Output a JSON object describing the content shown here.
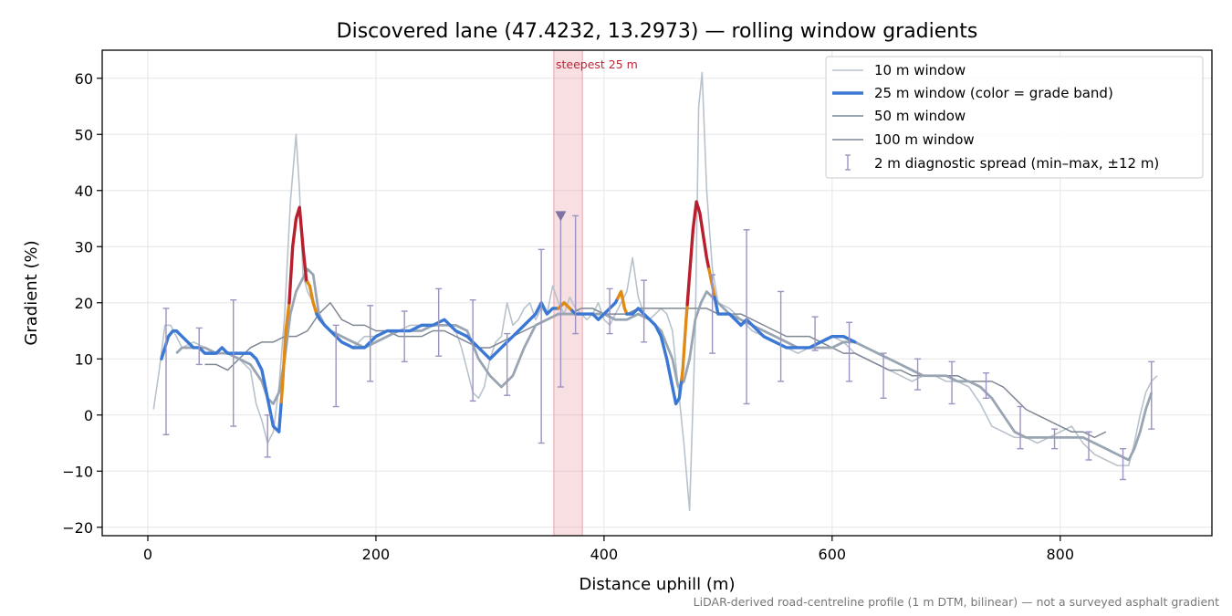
{
  "chart_data": {
    "type": "line",
    "title": "Discovered lane (47.4232, 13.2973) — rolling window gradients",
    "xlabel": "Distance uphill (m)",
    "ylabel": "Gradient (%)",
    "xlim": [
      -40,
      933
    ],
    "ylim": [
      -21.5,
      65
    ],
    "xticks": [
      0,
      200,
      400,
      600,
      800
    ],
    "yticks": [
      -20,
      -10,
      0,
      10,
      20,
      30,
      40,
      50,
      60
    ],
    "xtick_labels": [
      "0",
      "200",
      "400",
      "600",
      "800"
    ],
    "ytick_labels": [
      "−20",
      "−10",
      "0",
      "10",
      "20",
      "30",
      "40",
      "50",
      "60"
    ],
    "grid": true,
    "legend_position": "top-right",
    "footnote": "LiDAR-derived road-centreline profile (1 m DTM, bilinear) — not a surveyed asphalt gradient",
    "steepest_band": {
      "label": "steepest 25 m",
      "x0": 356,
      "x1": 381,
      "color": "#e8a3ac"
    },
    "steepest_marker": {
      "x": 362,
      "y": 35.5,
      "color": "#7f73a6"
    },
    "grade_colors": {
      "normal": "#3a78d4",
      "steep": "#e08a16",
      "very_steep": "#b81f2e"
    },
    "series": [
      {
        "name": "10 m window",
        "color": "#b8c2cc",
        "x": [
          5,
          10,
          15,
          20,
          25,
          30,
          40,
          50,
          60,
          70,
          80,
          90,
          95,
          100,
          105,
          110,
          115,
          120,
          125,
          130,
          133,
          136,
          140,
          145,
          150,
          160,
          170,
          180,
          190,
          200,
          210,
          220,
          230,
          240,
          250,
          260,
          270,
          275,
          280,
          285,
          290,
          295,
          300,
          305,
          310,
          315,
          320,
          325,
          330,
          335,
          340,
          345,
          350,
          355,
          360,
          365,
          370,
          375,
          380,
          385,
          390,
          395,
          400,
          405,
          410,
          415,
          420,
          425,
          430,
          435,
          440,
          445,
          450,
          455,
          460,
          465,
          470,
          475,
          480,
          483,
          486,
          490,
          495,
          500,
          510,
          520,
          530,
          540,
          550,
          560,
          570,
          580,
          590,
          600,
          610,
          620,
          630,
          640,
          650,
          660,
          670,
          680,
          690,
          700,
          710,
          720,
          730,
          740,
          750,
          760,
          770,
          780,
          790,
          800,
          810,
          820,
          830,
          840,
          850,
          860,
          865,
          870,
          875,
          880,
          885
        ],
        "y": [
          1,
          8,
          16,
          16,
          14,
          12,
          13,
          12,
          11,
          11,
          10,
          8,
          2,
          -1,
          -5,
          -3,
          5,
          18,
          38,
          50,
          40,
          25,
          22,
          20,
          17,
          15,
          13,
          12,
          14,
          14,
          15,
          15,
          16,
          16,
          16,
          17,
          15,
          12,
          8,
          4,
          3,
          5,
          10,
          13,
          14,
          20,
          16,
          17,
          19,
          20,
          17,
          19,
          18,
          23,
          20,
          18,
          21,
          19,
          18,
          17,
          18,
          20,
          17,
          16,
          18,
          20,
          22,
          28,
          21,
          18,
          17,
          18,
          19,
          18,
          15,
          5,
          -5,
          -17,
          15,
          55,
          61,
          40,
          26,
          20,
          19,
          17,
          15,
          14,
          13,
          12,
          11,
          12,
          13,
          14,
          13,
          11,
          10,
          9,
          8,
          7,
          6,
          7,
          7,
          6,
          6,
          5,
          2,
          -2,
          -3,
          -4,
          -4,
          -5,
          -4,
          -3,
          -2,
          -5,
          -7,
          -8,
          -9,
          -9,
          -5,
          0,
          4,
          6,
          7
        ]
      },
      {
        "name": "25 m window (color = grade band)",
        "color": "#3a78d4",
        "x": [
          12,
          15,
          18,
          22,
          25,
          30,
          35,
          40,
          45,
          50,
          55,
          60,
          65,
          70,
          75,
          80,
          85,
          90,
          95,
          100,
          105,
          110,
          115,
          118,
          121,
          124,
          127,
          130,
          133,
          136,
          139,
          142,
          145,
          148,
          151,
          155,
          160,
          165,
          170,
          180,
          190,
          200,
          210,
          220,
          230,
          240,
          250,
          260,
          270,
          280,
          290,
          300,
          310,
          320,
          330,
          340,
          345,
          350,
          355,
          360,
          365,
          370,
          375,
          380,
          385,
          390,
          395,
          400,
          405,
          410,
          415,
          418,
          420,
          425,
          430,
          435,
          440,
          445,
          450,
          455,
          460,
          463,
          466,
          469,
          472,
          475,
          478,
          481,
          484,
          487,
          490,
          493,
          496,
          500,
          505,
          510,
          515,
          520,
          525,
          530,
          540,
          550,
          560,
          570,
          580,
          590,
          600,
          610,
          620
        ],
        "y": [
          10,
          12,
          14,
          15,
          15,
          14,
          13,
          12,
          12,
          11,
          11,
          11,
          12,
          11,
          11,
          11,
          11,
          11,
          10,
          8,
          3,
          -2,
          -3,
          5,
          15,
          20,
          30,
          35,
          37,
          30,
          24,
          23,
          20,
          18,
          17,
          16,
          15,
          14,
          13,
          12,
          12,
          14,
          15,
          15,
          15,
          16,
          16,
          17,
          15,
          14,
          12,
          10,
          12,
          14,
          16,
          18,
          20,
          18,
          19,
          19,
          20,
          19,
          18,
          18,
          18,
          18,
          17,
          18,
          19,
          20,
          22,
          19,
          18,
          18,
          19,
          18,
          17,
          16,
          14,
          10,
          5,
          2,
          3,
          8,
          17,
          25,
          33,
          38,
          36,
          32,
          28,
          25,
          22,
          18,
          18,
          18,
          17,
          16,
          17,
          16,
          14,
          13,
          12,
          12,
          12,
          13,
          14,
          14,
          13
        ],
        "bands": [
          {
            "from": 12,
            "to": 117,
            "grade": "normal"
          },
          {
            "from": 117,
            "to": 124,
            "grade": "steep"
          },
          {
            "from": 124,
            "to": 140,
            "grade": "very_steep"
          },
          {
            "from": 140,
            "to": 148,
            "grade": "steep"
          },
          {
            "from": 148,
            "to": 360,
            "grade": "normal"
          },
          {
            "from": 360,
            "to": 372,
            "grade": "steep"
          },
          {
            "from": 372,
            "to": 412,
            "grade": "normal"
          },
          {
            "from": 412,
            "to": 420,
            "grade": "steep"
          },
          {
            "from": 420,
            "to": 468,
            "grade": "normal"
          },
          {
            "from": 468,
            "to": 473,
            "grade": "steep"
          },
          {
            "from": 473,
            "to": 492,
            "grade": "very_steep"
          },
          {
            "from": 492,
            "to": 497,
            "grade": "steep"
          },
          {
            "from": 497,
            "to": 620,
            "grade": "normal"
          }
        ]
      },
      {
        "name": "50 m window",
        "color": "#9aa5b3",
        "x": [
          25,
          30,
          40,
          50,
          60,
          70,
          80,
          90,
          100,
          105,
          110,
          115,
          120,
          125,
          130,
          135,
          140,
          145,
          150,
          155,
          160,
          170,
          180,
          190,
          200,
          210,
          220,
          230,
          240,
          250,
          260,
          270,
          280,
          290,
          300,
          310,
          320,
          330,
          340,
          350,
          360,
          370,
          380,
          390,
          400,
          410,
          420,
          430,
          440,
          450,
          460,
          465,
          470,
          475,
          480,
          485,
          490,
          500,
          510,
          520,
          530,
          540,
          550,
          560,
          570,
          580,
          590,
          600,
          610,
          620,
          630,
          640,
          650,
          660,
          670,
          680,
          690,
          700,
          710,
          720,
          730,
          740,
          750,
          760,
          770,
          780,
          790,
          800,
          810,
          820,
          830,
          840,
          850,
          860,
          865,
          870,
          875,
          880
        ],
        "y": [
          11,
          12,
          12,
          12,
          11,
          11,
          10,
          9,
          6,
          3,
          2,
          4,
          10,
          18,
          22,
          24,
          26,
          25,
          18,
          16,
          15,
          14,
          13,
          12,
          13,
          14,
          15,
          15,
          15,
          16,
          16,
          16,
          15,
          10,
          7,
          5,
          7,
          12,
          16,
          17,
          18,
          18,
          18,
          18,
          18,
          17,
          17,
          18,
          17,
          15,
          10,
          5,
          6,
          10,
          17,
          20,
          22,
          20,
          18,
          17,
          16,
          15,
          14,
          13,
          12,
          12,
          12,
          12,
          13,
          13,
          12,
          11,
          10,
          9,
          8,
          7,
          7,
          7,
          6,
          6,
          5,
          3,
          0,
          -3,
          -4,
          -4,
          -4,
          -4,
          -4,
          -4,
          -5,
          -6,
          -7,
          -8,
          -6,
          -3,
          1,
          4
        ]
      },
      {
        "name": "100 m window",
        "color": "#7e8794",
        "x": [
          50,
          60,
          70,
          80,
          90,
          100,
          110,
          120,
          130,
          140,
          150,
          160,
          170,
          180,
          190,
          200,
          210,
          220,
          230,
          240,
          250,
          260,
          270,
          280,
          290,
          300,
          310,
          320,
          330,
          340,
          350,
          360,
          370,
          380,
          390,
          400,
          410,
          420,
          430,
          440,
          450,
          460,
          470,
          480,
          490,
          500,
          510,
          520,
          530,
          540,
          550,
          560,
          570,
          580,
          590,
          600,
          610,
          620,
          630,
          640,
          650,
          660,
          670,
          680,
          690,
          700,
          710,
          720,
          730,
          740,
          750,
          760,
          770,
          780,
          790,
          800,
          810,
          820,
          830,
          840
        ],
        "y": [
          9,
          9,
          8,
          10,
          12,
          13,
          13,
          14,
          14,
          15,
          18,
          20,
          17,
          16,
          16,
          15,
          15,
          14,
          14,
          14,
          15,
          15,
          14,
          13,
          12,
          12,
          13,
          14,
          15,
          16,
          17,
          18,
          18,
          19,
          19,
          18,
          18,
          18,
          19,
          19,
          19,
          19,
          19,
          19,
          19,
          18,
          18,
          18,
          17,
          16,
          15,
          14,
          14,
          14,
          13,
          12,
          11,
          11,
          10,
          9,
          8,
          8,
          7,
          7,
          7,
          7,
          7,
          6,
          6,
          6,
          5,
          3,
          1,
          0,
          -1,
          -2,
          -3,
          -3,
          -4,
          -3
        ]
      },
      {
        "name": "2 m diagnostic spread (min–max, ±12 m)",
        "type": "errorbar",
        "color": "#9b93c0",
        "points": [
          {
            "x": 16,
            "min": -3.5,
            "max": 19
          },
          {
            "x": 45,
            "min": 9,
            "max": 15.5
          },
          {
            "x": 75,
            "min": -2,
            "max": 20.5
          },
          {
            "x": 105,
            "min": -7.5,
            "max": 0
          },
          {
            "x": 165,
            "min": 1.5,
            "max": 16
          },
          {
            "x": 195,
            "min": 6,
            "max": 19.5
          },
          {
            "x": 225,
            "min": 9.5,
            "max": 18.5
          },
          {
            "x": 255,
            "min": 10.5,
            "max": 22.5
          },
          {
            "x": 285,
            "min": 2.5,
            "max": 20.5
          },
          {
            "x": 315,
            "min": 3.5,
            "max": 14.5
          },
          {
            "x": 345,
            "min": -5,
            "max": 29.5
          },
          {
            "x": 362,
            "min": 5,
            "max": 35.5
          },
          {
            "x": 375,
            "min": 14.5,
            "max": 35.5
          },
          {
            "x": 405,
            "min": 14.5,
            "max": 22.5
          },
          {
            "x": 435,
            "min": 13,
            "max": 24
          },
          {
            "x": 495,
            "min": 11,
            "max": 25
          },
          {
            "x": 525,
            "min": 2,
            "max": 33
          },
          {
            "x": 555,
            "min": 6,
            "max": 22
          },
          {
            "x": 585,
            "min": 11.5,
            "max": 17.5
          },
          {
            "x": 615,
            "min": 6,
            "max": 16.5
          },
          {
            "x": 645,
            "min": 3,
            "max": 11
          },
          {
            "x": 675,
            "min": 4.5,
            "max": 10
          },
          {
            "x": 705,
            "min": 2,
            "max": 9.5
          },
          {
            "x": 735,
            "min": 3,
            "max": 7.5
          },
          {
            "x": 765,
            "min": -6,
            "max": 1.5
          },
          {
            "x": 795,
            "min": -6,
            "max": -2.5
          },
          {
            "x": 825,
            "min": -8,
            "max": -3
          },
          {
            "x": 855,
            "min": -11.5,
            "max": -6
          },
          {
            "x": 880,
            "min": -2.5,
            "max": 9.5
          }
        ]
      }
    ]
  }
}
